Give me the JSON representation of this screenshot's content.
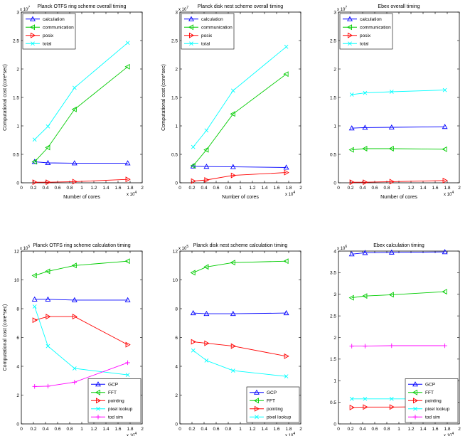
{
  "colors": {
    "calculation": "#0000ff",
    "GCP": "#0000ff",
    "communication": "#00cc00",
    "FFT": "#00cc00",
    "posix": "#ff0000",
    "pointing": "#ff0000",
    "total": "#00ffff",
    "pixel lookup": "#00ffff",
    "tod sim": "#ff00ff"
  },
  "markers": {
    "calculation": "triangle-up",
    "GCP": "triangle-up",
    "communication": "triangle-left",
    "FFT": "triangle-left",
    "posix": "triangle-right",
    "pointing": "triangle-right",
    "total": "x",
    "pixel lookup": "x",
    "tod sim": "plus"
  },
  "chart_data": [
    {
      "type": "line",
      "title": "Planck OTFS ring scheme overall timing",
      "xlabel": "Number of cores",
      "ylabel": "Computational cost (core*sec)",
      "x_exponent": "x 10",
      "x_exp_power": "4",
      "y_exponent": "x 10",
      "y_exp_power": "7",
      "xlim": [
        0,
        2
      ],
      "ylim": [
        0,
        3
      ],
      "xticks": [
        "0",
        "0.2",
        "0.4",
        "0.6",
        "0.8",
        "1",
        "1.2",
        "1.4",
        "1.6",
        "1.8",
        "2"
      ],
      "yticks": [
        "0",
        "0.5",
        "1",
        "1.5",
        "2",
        "2.5",
        "3"
      ],
      "legend_position": "top-left",
      "x": [
        0.22,
        0.44,
        0.88,
        1.76
      ],
      "series": [
        {
          "name": "calculation",
          "values": [
            0.37,
            0.35,
            0.345,
            0.345
          ]
        },
        {
          "name": "communication",
          "values": [
            0.37,
            0.62,
            1.29,
            2.04
          ]
        },
        {
          "name": "posix",
          "values": [
            0.01,
            0.01,
            0.02,
            0.06
          ]
        },
        {
          "name": "total",
          "values": [
            0.76,
            0.99,
            1.67,
            2.46
          ]
        }
      ]
    },
    {
      "type": "line",
      "title": "Planck disk nest scheme overall timing",
      "xlabel": "Number of cores",
      "ylabel": "Computational cost (core*sec)",
      "x_exponent": "x 10",
      "x_exp_power": "4",
      "y_exponent": "x 10",
      "y_exp_power": "7",
      "xlim": [
        0,
        2
      ],
      "ylim": [
        0,
        3
      ],
      "xticks": [
        "0",
        "0.2",
        "0.4",
        "0.6",
        "0.8",
        "1",
        "1.2",
        "1.4",
        "1.6",
        "1.8",
        "2"
      ],
      "yticks": [
        "0",
        "0.5",
        "1",
        "1.5",
        "2",
        "2.5",
        "3"
      ],
      "legend_position": "top-left",
      "x": [
        0.22,
        0.44,
        0.88,
        1.76
      ],
      "series": [
        {
          "name": "calculation",
          "values": [
            0.29,
            0.285,
            0.28,
            0.27
          ]
        },
        {
          "name": "communication",
          "values": [
            0.3,
            0.58,
            1.21,
            1.91
          ]
        },
        {
          "name": "posix",
          "values": [
            0.03,
            0.05,
            0.13,
            0.18
          ]
        },
        {
          "name": "total",
          "values": [
            0.63,
            0.92,
            1.62,
            2.39
          ]
        }
      ]
    },
    {
      "type": "line",
      "title": "Ebex overall timing",
      "xlabel": "Number of cores",
      "ylabel": "",
      "x_exponent": "x 10",
      "x_exp_power": "4",
      "y_exponent": "x 10",
      "y_exp_power": "7",
      "xlim": [
        0,
        2
      ],
      "ylim": [
        0,
        3
      ],
      "xticks": [
        "0",
        "0.2",
        "0.4",
        "0.6",
        "0.8",
        "1",
        "1.2",
        "1.4",
        "1.6",
        "1.8",
        "2"
      ],
      "yticks": [
        "0",
        "0.5",
        "1",
        "1.5",
        "2",
        "2.5",
        "3"
      ],
      "legend_position": "top-left",
      "x": [
        0.22,
        0.44,
        0.88,
        1.76
      ],
      "series": [
        {
          "name": "calculation",
          "values": [
            0.96,
            0.97,
            0.975,
            0.985
          ]
        },
        {
          "name": "communication",
          "values": [
            0.58,
            0.6,
            0.6,
            0.59
          ]
        },
        {
          "name": "posix",
          "values": [
            0.01,
            0.01,
            0.02,
            0.04
          ]
        },
        {
          "name": "total",
          "values": [
            1.55,
            1.58,
            1.6,
            1.63
          ]
        }
      ]
    },
    {
      "type": "line",
      "title": "Planck OTFS ring scheme calculation timing",
      "xlabel": "Number of cores",
      "ylabel": "Computational cost (core*sec)",
      "x_exponent": "x 10",
      "x_exp_power": "4",
      "y_exponent": "x 10",
      "y_exp_power": "5",
      "xlim": [
        0,
        2
      ],
      "ylim": [
        0,
        12
      ],
      "xticks": [
        "0",
        "0.2",
        "0.4",
        "0.6",
        "0.8",
        "1",
        "1.2",
        "1.4",
        "1.6",
        "1.8",
        "2"
      ],
      "yticks": [
        "0",
        "2",
        "4",
        "6",
        "8",
        "10",
        "12"
      ],
      "legend_position": "bottom-right",
      "x": [
        0.22,
        0.44,
        0.88,
        1.76
      ],
      "series": [
        {
          "name": "GCP",
          "values": [
            8.65,
            8.65,
            8.6,
            8.6
          ]
        },
        {
          "name": "FFT",
          "values": [
            10.3,
            10.6,
            11.0,
            11.3
          ]
        },
        {
          "name": "pointing",
          "values": [
            7.2,
            7.45,
            7.45,
            5.5
          ]
        },
        {
          "name": "pixel lookup",
          "values": [
            8.15,
            5.4,
            3.85,
            3.4
          ]
        },
        {
          "name": "tod sim",
          "values": [
            2.6,
            2.62,
            2.9,
            4.25
          ]
        }
      ]
    },
    {
      "type": "line",
      "title": "Planck disk nest scheme calculation timing",
      "xlabel": "Number of cores",
      "ylabel": "",
      "x_exponent": "x 10",
      "x_exp_power": "4",
      "y_exponent": "x 10",
      "y_exp_power": "5",
      "xlim": [
        0,
        2
      ],
      "ylim": [
        0,
        12
      ],
      "xticks": [
        "0",
        "0.2",
        "0.4",
        "0.6",
        "0.8",
        "1",
        "1.2",
        "1.4",
        "1.6",
        "1.8",
        "2"
      ],
      "yticks": [
        "0",
        "2",
        "4",
        "6",
        "8",
        "10",
        "12"
      ],
      "legend_position": "bottom-right",
      "x": [
        0.22,
        0.44,
        0.88,
        1.76
      ],
      "series": [
        {
          "name": "GCP",
          "values": [
            7.7,
            7.65,
            7.65,
            7.7
          ]
        },
        {
          "name": "FFT",
          "values": [
            10.5,
            10.9,
            11.2,
            11.3
          ]
        },
        {
          "name": "pointing",
          "values": [
            5.7,
            5.6,
            5.4,
            4.7
          ]
        },
        {
          "name": "pixel lookup",
          "values": [
            5.1,
            4.4,
            3.7,
            3.3
          ]
        }
      ]
    },
    {
      "type": "line",
      "title": "Ebex calculation timing",
      "xlabel": "Number of cores",
      "ylabel": "",
      "x_exponent": "x 10",
      "x_exp_power": "4",
      "y_exponent": "x 10",
      "y_exp_power": "6",
      "xlim": [
        0,
        2
      ],
      "ylim": [
        0,
        4
      ],
      "xticks": [
        "0",
        "0.2",
        "0.4",
        "0.6",
        "0.8",
        "1",
        "1.2",
        "1.4",
        "1.6",
        "1.8",
        "2"
      ],
      "yticks": [
        "0",
        "0.5",
        "1",
        "1.5",
        "2",
        "2.5",
        "3",
        "3.5",
        "4"
      ],
      "legend_position": "bottom-right",
      "x": [
        0.22,
        0.44,
        0.88,
        1.76
      ],
      "series": [
        {
          "name": "GCP",
          "values": [
            3.93,
            3.96,
            3.97,
            3.98
          ]
        },
        {
          "name": "FFT",
          "values": [
            2.92,
            2.96,
            2.99,
            3.06
          ]
        },
        {
          "name": "pointing",
          "values": [
            0.38,
            0.39,
            0.39,
            0.4
          ]
        },
        {
          "name": "pixel lookup",
          "values": [
            0.58,
            0.58,
            0.58,
            0.58
          ]
        },
        {
          "name": "tod sim",
          "values": [
            1.8,
            1.8,
            1.81,
            1.81
          ]
        }
      ]
    }
  ]
}
